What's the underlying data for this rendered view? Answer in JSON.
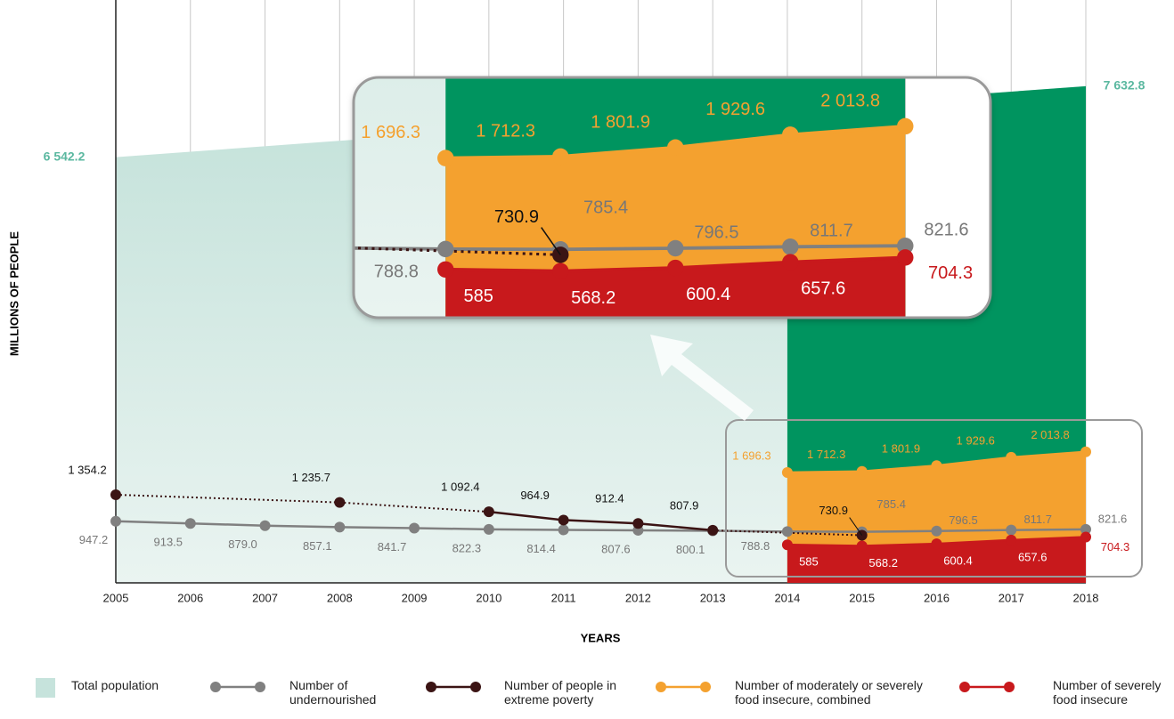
{
  "chart_data": {
    "type": "line",
    "x": [
      2005,
      2006,
      2007,
      2008,
      2009,
      2010,
      2011,
      2012,
      2013,
      2014,
      2015,
      2016,
      2017,
      2018
    ],
    "xlim": [
      2005,
      2018
    ],
    "ylim": [
      0,
      8000
    ],
    "x_label": "YEARS",
    "y_label": "MILLIONS OF PEOPLE",
    "grid": true,
    "series": [
      {
        "name": "Total population",
        "color": "#5bb8a0",
        "area_colors": [
          "#c6e3dc",
          "#00945f"
        ],
        "x": [
          2005,
          2018
        ],
        "values": [
          6542.2,
          7632.8
        ],
        "value_labels": [
          "6 542.2",
          "7 632.8"
        ]
      },
      {
        "name": "Number of undernourished",
        "color": "#808080",
        "values": [
          947.2,
          913.5,
          879.0,
          857.1,
          841.7,
          822.3,
          814.4,
          807.6,
          800.1,
          788.8,
          785.4,
          796.5,
          811.7,
          821.6
        ],
        "value_labels": [
          "947.2",
          "913.5",
          "879.0",
          "857.1",
          "841.7",
          "822.3",
          "814.4",
          "807.6",
          "800.1",
          "788.8",
          "785.4",
          "796.5",
          "811.7",
          "821.6"
        ]
      },
      {
        "name": "Number of people in extreme poverty",
        "color": "#3b1414",
        "values": [
          1354.2,
          null,
          null,
          1235.7,
          null,
          1092.4,
          964.9,
          912.4,
          807.9,
          null,
          730.9,
          null,
          null,
          null
        ],
        "value_labels": [
          "1 354.2",
          null,
          null,
          "1 235.7",
          null,
          "1 092.4",
          "964.9",
          "912.4",
          "807.9",
          null,
          "730.9",
          null,
          null,
          null
        ]
      },
      {
        "name": "Number of moderately or severely food insecure, combined",
        "color": "#f4a12f",
        "values": [
          null,
          null,
          null,
          null,
          null,
          null,
          null,
          null,
          null,
          1696.3,
          1712.3,
          1801.9,
          1929.6,
          2013.8
        ],
        "value_labels": [
          null,
          null,
          null,
          null,
          null,
          null,
          null,
          null,
          null,
          "1 696.3",
          "1 712.3",
          "1 801.9",
          "1 929.6",
          "2 013.8"
        ]
      },
      {
        "name": "Number of severely food insecure",
        "color": "#c8191c",
        "values": [
          null,
          null,
          null,
          null,
          null,
          null,
          null,
          null,
          null,
          585,
          568.2,
          600.4,
          657.6,
          704.3
        ],
        "value_labels": [
          null,
          null,
          null,
          null,
          null,
          null,
          null,
          null,
          null,
          "585",
          "568.2",
          "600.4",
          "657.6",
          "704.3"
        ]
      }
    ]
  }
}
